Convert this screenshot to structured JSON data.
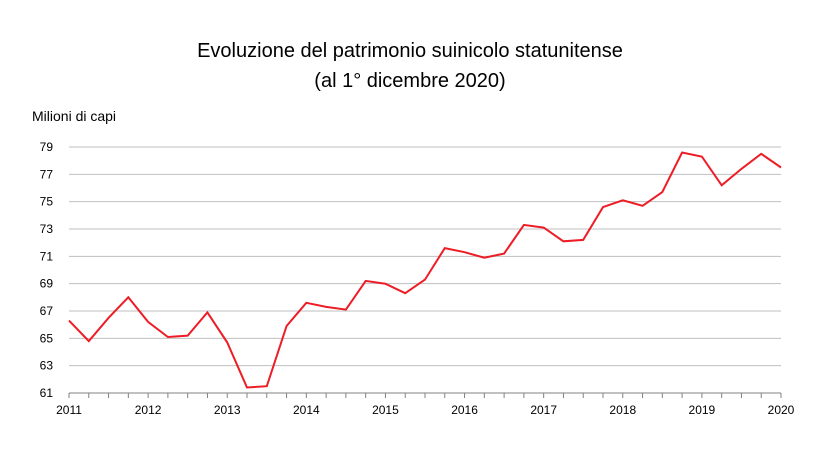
{
  "chart_data": {
    "type": "line",
    "title": "Evoluzione del patrimonio suinicolo statunitense",
    "subtitle": "(al 1° dicembre 2020)",
    "ylabel": "Milioni di capi",
    "xlabel": "",
    "ylim": [
      61,
      79
    ],
    "yticks": [
      "61",
      "63",
      "65",
      "67",
      "69",
      "71",
      "73",
      "75",
      "77",
      "79"
    ],
    "xlim": [
      2011,
      2020
    ],
    "xticks": [
      "2011",
      "2012",
      "2013",
      "2014",
      "2015",
      "2016",
      "2017",
      "2018",
      "2019",
      "2020"
    ],
    "grid": "horizontal",
    "series": [
      {
        "name": "Milioni di capi",
        "color": "#ee1c25",
        "x": [
          2011.0,
          2011.25,
          2011.5,
          2011.75,
          2012.0,
          2012.25,
          2012.5,
          2012.75,
          2013.0,
          2013.25,
          2013.5,
          2013.75,
          2014.0,
          2014.25,
          2014.5,
          2014.75,
          2015.0,
          2015.25,
          2015.5,
          2015.75,
          2016.0,
          2016.25,
          2016.5,
          2016.75,
          2017.0,
          2017.25,
          2017.5,
          2017.75,
          2018.0,
          2018.25,
          2018.5,
          2018.75,
          2019.0,
          2019.25,
          2019.5,
          2019.75,
          2020.0
        ],
        "values": [
          66.3,
          64.8,
          66.5,
          68.0,
          66.2,
          65.1,
          65.2,
          66.9,
          64.7,
          61.4,
          61.5,
          65.9,
          67.6,
          67.3,
          67.1,
          69.2,
          69.0,
          68.3,
          69.3,
          71.6,
          71.3,
          70.9,
          71.2,
          73.3,
          73.1,
          72.1,
          72.2,
          74.6,
          75.1,
          74.7,
          75.7,
          78.6,
          78.3,
          76.2,
          77.4,
          78.5,
          77.5
        ]
      }
    ]
  }
}
